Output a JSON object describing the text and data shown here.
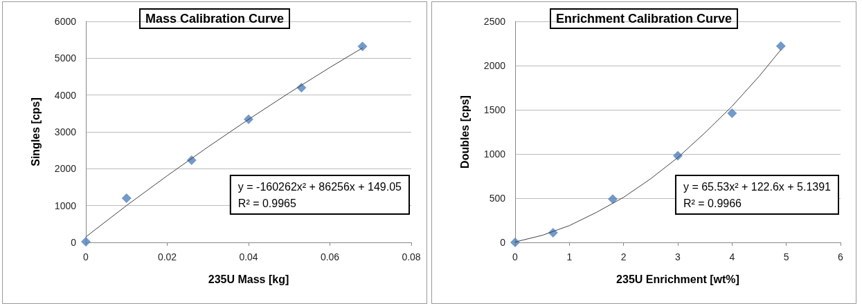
{
  "chart_data": [
    {
      "type": "scatter",
      "title": "Mass Calibration Curve",
      "xlabel": "235U Mass [kg]",
      "ylabel": "Singles [cps]",
      "xlim": [
        0,
        0.08
      ],
      "xticks": [
        0,
        0.02,
        0.04,
        0.06,
        0.08
      ],
      "ylim": [
        0,
        6000
      ],
      "yticks": [
        0,
        1000,
        2000,
        3000,
        4000,
        5000,
        6000
      ],
      "grid": "y",
      "annotations": [
        "y = -160262x² + 86256x + 149.05",
        "R² = 0.9965"
      ],
      "series": [
        {
          "color": "#4f81bd",
          "marker": "diamond",
          "x": [
            0,
            0.01,
            0.026,
            0.04,
            0.053,
            0.068
          ],
          "values": [
            20,
            1200,
            2230,
            3340,
            4200,
            5320
          ]
        },
        {
          "type": "line",
          "color": "#404040",
          "marker": "none",
          "line_style": "solid",
          "x": [
            0,
            0.01,
            0.02,
            0.03,
            0.04,
            0.05,
            0.06,
            0.068
          ],
          "values": [
            150,
            1000,
            1810,
            2590,
            3340,
            4060,
            4750,
            5280
          ]
        }
      ]
    },
    {
      "type": "scatter",
      "title": "Enrichment Calibration Curve",
      "xlabel": "235U Enrichment [wt%]",
      "ylabel": "Doubles [cps]",
      "xlim": [
        0,
        6
      ],
      "xticks": [
        0,
        1,
        2,
        3,
        4,
        5,
        6
      ],
      "ylim": [
        0,
        2500
      ],
      "yticks": [
        0,
        500,
        1000,
        1500,
        2000,
        2500
      ],
      "grid": "y",
      "annotations": [
        "y = 65.53x² + 122.6x + 5.1391",
        "R² = 0.9966"
      ],
      "series": [
        {
          "color": "#4f81bd",
          "marker": "diamond",
          "x": [
            0,
            0.7,
            1.8,
            3,
            4,
            4.9
          ],
          "values": [
            0,
            110,
            490,
            980,
            1460,
            2220
          ]
        },
        {
          "type": "line",
          "color": "#404040",
          "marker": "none",
          "line_style": "solid",
          "x": [
            0,
            0.5,
            1,
            1.5,
            2,
            2.5,
            3,
            3.5,
            4,
            4.5,
            4.9
          ],
          "values": [
            5,
            80,
            190,
            340,
            510,
            720,
            960,
            1240,
            1540,
            1880,
            2180
          ]
        }
      ]
    }
  ]
}
